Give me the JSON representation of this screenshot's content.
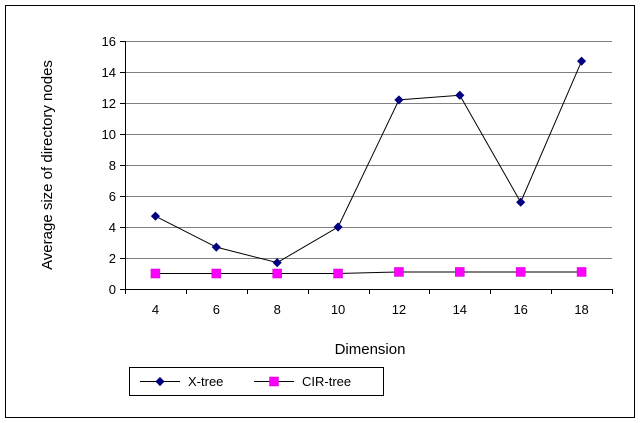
{
  "chart_data": {
    "type": "line",
    "title": "",
    "xlabel": "Dimension",
    "ylabel": "Average size of directory nodes",
    "categories": [
      "4",
      "6",
      "8",
      "10",
      "12",
      "14",
      "16",
      "18"
    ],
    "ylim": [
      0,
      16
    ],
    "yticks": [
      "0",
      "2",
      "4",
      "6",
      "8",
      "10",
      "12",
      "14",
      "16"
    ],
    "grid": true,
    "legend_position": "bottom-left",
    "series": [
      {
        "name": "X-tree",
        "color": "#000080",
        "marker": "diamond",
        "values": [
          4.7,
          2.7,
          1.7,
          4.0,
          12.2,
          12.5,
          5.6,
          14.7
        ]
      },
      {
        "name": "CIR-tree",
        "color": "#ff00ff",
        "marker": "square",
        "values": [
          1.0,
          1.0,
          1.0,
          1.0,
          1.1,
          1.1,
          1.1,
          1.1
        ]
      }
    ]
  }
}
